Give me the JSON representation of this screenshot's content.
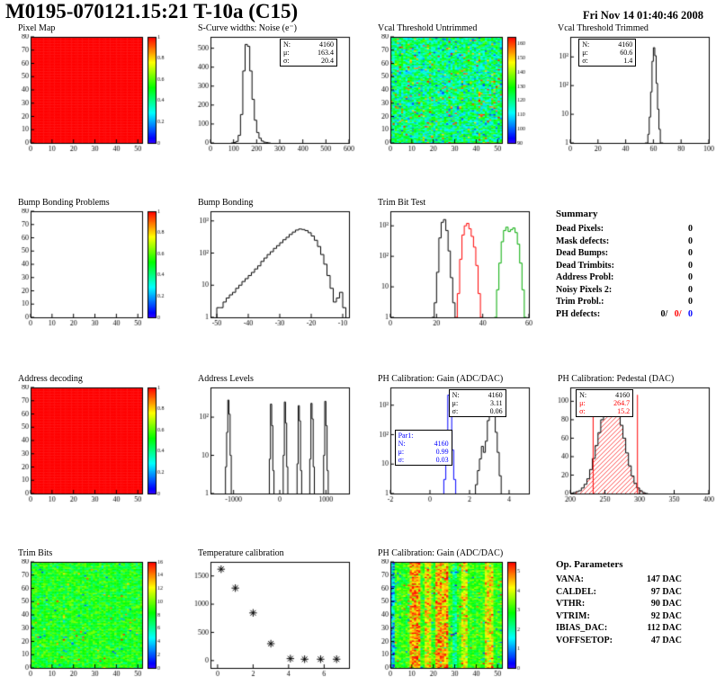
{
  "header": {
    "title": "M0195-070121.15:21 T-10a (C15)",
    "date": "Fri Nov 14 01:40:46 2008"
  },
  "summary": {
    "title": "Summary",
    "rows": [
      {
        "label": "Dead Pixels:",
        "value": "0"
      },
      {
        "label": "Mask defects:",
        "value": "0"
      },
      {
        "label": "Dead Bumps:",
        "value": "0"
      },
      {
        "label": "Dead Trimbits:",
        "value": "0"
      },
      {
        "label": "Address Probl:",
        "value": "0"
      },
      {
        "label": "Noisy Pixels 2:",
        "value": "0"
      },
      {
        "label": "Trim Probl.:",
        "value": "0"
      }
    ],
    "ph": {
      "label": "PH defects:",
      "v1": "0/",
      "v2": "0/",
      "v3": "0"
    }
  },
  "op_parameters": {
    "title": "Op. Parameters",
    "rows": [
      {
        "label": "VANA:",
        "value": "147 DAC"
      },
      {
        "label": "CALDEL:",
        "value": "97 DAC"
      },
      {
        "label": "VTHR:",
        "value": "90 DAC"
      },
      {
        "label": "VTRIM:",
        "value": "92 DAC"
      },
      {
        "label": "IBIAS_DAC:",
        "value": "112 DAC"
      },
      {
        "label": "VOFFSETOP:",
        "value": "47 DAC"
      }
    ]
  },
  "chart_data": [
    {
      "id": "pixel_map",
      "type": "heatmap",
      "title": "Pixel Map",
      "nx": 52,
      "ny": 80,
      "pattern": "uniform",
      "base": 1,
      "seed": 1,
      "x": {
        "min": 0,
        "max": 52,
        "ticks": [
          0,
          10,
          20,
          30,
          40,
          50
        ]
      },
      "y": {
        "min": 0,
        "max": 80,
        "ticks": [
          0,
          10,
          20,
          30,
          40,
          50,
          60,
          70,
          80
        ]
      },
      "z": {
        "min": 0,
        "max": 1
      },
      "colorbar": {
        "ticks": [
          0,
          0.2,
          0.4,
          0.6,
          0.8,
          1
        ]
      }
    },
    {
      "id": "scurve_noise",
      "type": "hist",
      "title": "S-Curve widths: Noise (e⁻)",
      "x": {
        "min": 0,
        "max": 600,
        "ticks": [
          0,
          100,
          200,
          300,
          400,
          500,
          600
        ]
      },
      "y": {
        "min": 0,
        "max": 560,
        "ticks": [
          0,
          100,
          200,
          300,
          400,
          500
        ]
      },
      "series": [
        {
          "color": "#000000",
          "start": 90,
          "width": 10,
          "counts": [
            0,
            2,
            8,
            40,
            150,
            380,
            520,
            510,
            380,
            230,
            120,
            55,
            25,
            10,
            4,
            2,
            0
          ]
        }
      ],
      "stats": [
        {
          "x": 0.5,
          "y": 0.02,
          "lines": [
            {
              "l": "N:",
              "v": "4160"
            },
            {
              "l": "μ:",
              "v": "163.4"
            },
            {
              "l": "σ:",
              "v": "20.4"
            }
          ]
        }
      ]
    },
    {
      "id": "vcal_untrimmed",
      "type": "heatmap",
      "title": "Vcal Threshold Untrimmed",
      "nx": 52,
      "ny": 80,
      "pattern": "noise",
      "base": 0.42,
      "spread": 0.38,
      "hot": 0.045,
      "cold": 0.06,
      "seed": 7,
      "x": {
        "min": 0,
        "max": 52,
        "ticks": [
          0,
          10,
          20,
          30,
          40,
          50
        ]
      },
      "y": {
        "min": 0,
        "max": 80,
        "ticks": [
          0,
          10,
          20,
          30,
          40,
          50,
          60,
          70,
          80
        ]
      },
      "z": {
        "min": 90,
        "max": 165
      },
      "colorbar": {
        "ticks": [
          90,
          100,
          110,
          120,
          130,
          140,
          150,
          160
        ]
      }
    },
    {
      "id": "vcal_trimmed",
      "type": "hist",
      "title": "Vcal Threshold Trimmed",
      "logy": true,
      "x": {
        "min": 0,
        "max": 100,
        "ticks": [
          0,
          20,
          40,
          60,
          80,
          100
        ]
      },
      "y": {
        "min": 1,
        "max": 5000,
        "ticks": [
          {
            "v": 1,
            "label": "1"
          },
          {
            "v": 10,
            "label": "10"
          },
          {
            "v": 100,
            "label": "10²"
          },
          {
            "v": 1000,
            "label": "10³"
          }
        ]
      },
      "series": [
        {
          "color": "#000000",
          "start": 54,
          "width": 1,
          "counts": [
            0,
            1,
            2,
            8,
            60,
            700,
            2100,
            1100,
            120,
            15,
            3,
            1,
            0
          ]
        }
      ],
      "stats": [
        {
          "x": 0.06,
          "y": 0.02,
          "lines": [
            {
              "l": "N:",
              "v": "4160"
            },
            {
              "l": "μ:",
              "v": "60.6"
            },
            {
              "l": "σ:",
              "v": "1.4"
            }
          ]
        }
      ]
    },
    {
      "id": "bb_problems",
      "type": "heatmap",
      "title": "Bump Bonding Problems",
      "nx": 52,
      "ny": 80,
      "pattern": "empty",
      "seed": 2,
      "x": {
        "min": 0,
        "max": 52,
        "ticks": [
          0,
          10,
          20,
          30,
          40,
          50
        ]
      },
      "y": {
        "min": 0,
        "max": 80,
        "ticks": [
          0,
          10,
          20,
          30,
          40,
          50,
          60,
          70,
          80
        ]
      },
      "z": {
        "min": 0,
        "max": 1
      },
      "colorbar": {
        "ticks": [
          0,
          0.2,
          0.4,
          0.6,
          0.8,
          1
        ]
      }
    },
    {
      "id": "bump_bonding",
      "type": "hist",
      "title": "Bump Bonding",
      "logy": true,
      "x": {
        "min": -52,
        "max": -8,
        "ticks": [
          -50,
          -40,
          -30,
          -20,
          -10
        ]
      },
      "y": {
        "min": 1,
        "max": 2000,
        "ticks": [
          {
            "v": 1,
            "label": "1"
          },
          {
            "v": 10,
            "label": "10"
          },
          {
            "v": 100,
            "label": "10²"
          },
          {
            "v": 1000,
            "label": "10³"
          }
        ]
      },
      "series": [
        {
          "color": "#000000",
          "start": -50,
          "width": 1,
          "counts": [
            2,
            2,
            3,
            4,
            5,
            6,
            8,
            10,
            13,
            16,
            20,
            25,
            32,
            40,
            55,
            70,
            90,
            110,
            140,
            170,
            210,
            260,
            310,
            380,
            450,
            520,
            560,
            540,
            500,
            430,
            340,
            250,
            160,
            90,
            45,
            20,
            8,
            3,
            4,
            6,
            2
          ]
        }
      ]
    },
    {
      "id": "trimbit_test",
      "type": "hist",
      "title": "Trim Bit Test",
      "logy": true,
      "x": {
        "min": 0,
        "max": 60,
        "ticks": [
          0,
          20,
          40,
          60
        ]
      },
      "y": {
        "min": 1,
        "max": 3000,
        "ticks": [
          {
            "v": 1,
            "label": "1"
          },
          {
            "v": 10,
            "label": "10"
          },
          {
            "v": 100,
            "label": "10²"
          },
          {
            "v": 1000,
            "label": "10³"
          }
        ]
      },
      "series": [
        {
          "color": "#000000",
          "start": 18,
          "width": 1,
          "counts": [
            1,
            3,
            30,
            400,
            1300,
            1600,
            700,
            150,
            20,
            3
          ]
        },
        {
          "color": "#ff0000",
          "start": 28,
          "width": 1,
          "counts": [
            1,
            6,
            80,
            500,
            1000,
            1200,
            800,
            450,
            200,
            50,
            6,
            1
          ]
        },
        {
          "color": "#00aa00",
          "start": 45,
          "width": 1,
          "counts": [
            1,
            8,
            60,
            300,
            700,
            900,
            650,
            750,
            850,
            600,
            250,
            60,
            8,
            1
          ]
        }
      ]
    },
    {
      "id": "address_decoding",
      "type": "heatmap",
      "title": "Address decoding",
      "nx": 52,
      "ny": 80,
      "pattern": "uniform",
      "base": 1,
      "seed": 3,
      "x": {
        "min": 0,
        "max": 52,
        "ticks": [
          0,
          10,
          20,
          30,
          40,
          50
        ]
      },
      "y": {
        "min": 0,
        "max": 80,
        "ticks": [
          0,
          10,
          20,
          30,
          40,
          50,
          60,
          70,
          80
        ]
      },
      "z": {
        "min": 0,
        "max": 1
      },
      "colorbar": {
        "ticks": [
          0,
          0.2,
          0.4,
          0.6,
          0.8,
          1
        ]
      }
    },
    {
      "id": "address_levels",
      "type": "hist",
      "title": "Address Levels",
      "logy": true,
      "x": {
        "min": -1500,
        "max": 1500,
        "ticks": [
          -1000,
          0,
          1000
        ]
      },
      "y": {
        "min": 1,
        "max": 600,
        "ticks": [
          {
            "v": 1,
            "label": "1"
          },
          {
            "v": 10,
            "label": "10"
          },
          {
            "v": 100,
            "label": "10²"
          }
        ]
      },
      "series": [
        {
          "color": "#000000",
          "start": -1175,
          "width": 25,
          "counts": [
            5,
            40,
            280,
            120,
            10
          ]
        },
        {
          "color": "#000000",
          "start": -225,
          "width": 25,
          "counts": [
            8,
            220,
            60,
            4
          ]
        },
        {
          "color": "#000000",
          "start": 75,
          "width": 25,
          "counts": [
            10,
            250,
            70,
            5
          ]
        },
        {
          "color": "#000000",
          "start": 375,
          "width": 25,
          "counts": [
            6,
            200,
            80,
            4
          ]
        },
        {
          "color": "#000000",
          "start": 650,
          "width": 25,
          "counts": [
            8,
            230,
            90,
            5
          ]
        },
        {
          "color": "#000000",
          "start": 950,
          "width": 25,
          "counts": [
            10,
            260,
            60,
            4
          ]
        }
      ]
    },
    {
      "id": "ph_gain",
      "type": "hist",
      "title": "PH Calibration: Gain (ADC/DAC)",
      "logy": true,
      "x": {
        "min": -2,
        "max": 5,
        "ticks": [
          -2,
          0,
          2,
          4
        ]
      },
      "y": {
        "min": 1,
        "max": 4000,
        "ticks": [
          {
            "v": 1,
            "label": "1"
          },
          {
            "v": 10,
            "label": "10"
          },
          {
            "v": 100,
            "label": "10²"
          },
          {
            "v": 1000,
            "label": "10³"
          }
        ]
      },
      "series": [
        {
          "color": "#0000ff",
          "start": 0.7,
          "width": 0.1,
          "counts": [
            3,
            40,
            2200,
            600,
            30,
            3
          ]
        },
        {
          "color": "#000000",
          "start": 2.3,
          "width": 0.1,
          "counts": [
            2,
            6,
            15,
            40,
            25,
            60,
            300,
            1100,
            1400,
            500,
            120,
            25,
            4
          ]
        }
      ],
      "stats": [
        {
          "x": 0.42,
          "y": 0.02,
          "lines": [
            {
              "l": "N:",
              "v": "4160"
            },
            {
              "l": "μ:",
              "v": "3.11"
            },
            {
              "l": "σ:",
              "v": "0.06"
            }
          ]
        },
        {
          "x": 0.03,
          "y": 0.4,
          "lines": [
            {
              "l": "Par1:",
              "v": "",
              "c": "#0000ff"
            },
            {
              "l": "N:",
              "v": "4160",
              "c": "#0000ff"
            },
            {
              "l": "μ:",
              "v": "0.99",
              "c": "#0000ff"
            },
            {
              "l": "σ:",
              "v": "0.03",
              "c": "#0000ff"
            }
          ]
        }
      ]
    },
    {
      "id": "ph_pedestal",
      "type": "hist",
      "title": "PH Calibration: Pedestal (DAC)",
      "x": {
        "min": 200,
        "max": 400,
        "ticks": [
          200,
          250,
          300,
          350,
          400
        ]
      },
      "y": {
        "min": 0,
        "max": 115,
        "ticks": [
          0,
          20,
          40,
          60,
          80,
          100
        ]
      },
      "series": [
        {
          "color": "#000000",
          "fill": "hatch-red",
          "start": 200,
          "width": 4,
          "counts": [
            0,
            1,
            2,
            3,
            6,
            10,
            16,
            26,
            38,
            52,
            66,
            80,
            94,
            97,
            105,
            100,
            92,
            85,
            74,
            60,
            44,
            30,
            19,
            11,
            6,
            3,
            1,
            0
          ]
        }
      ],
      "vlines": [
        {
          "x": 233,
          "y2": 107,
          "color": "#ff0000"
        },
        {
          "x": 297,
          "y2": 107,
          "color": "#ff0000"
        }
      ],
      "stats": [
        {
          "x": 0.04,
          "y": 0.02,
          "lines": [
            {
              "l": "N:",
              "v": "4160"
            },
            {
              "l": "μ:",
              "v": "264.7",
              "c": "#ff0000"
            },
            {
              "l": "σ:",
              "v": "15.2",
              "c": "#ff0000"
            }
          ]
        }
      ]
    },
    {
      "id": "trim_bits",
      "type": "heatmap",
      "title": "Trim Bits",
      "nx": 52,
      "ny": 80,
      "pattern": "noise",
      "base": 0.52,
      "spread": 0.26,
      "hot": 0.01,
      "cold": 0.012,
      "seed": 21,
      "x": {
        "min": 0,
        "max": 52,
        "ticks": [
          0,
          10,
          20,
          30,
          40,
          50
        ]
      },
      "y": {
        "min": 0,
        "max": 80,
        "ticks": [
          0,
          10,
          20,
          30,
          40,
          50,
          60,
          70,
          80
        ]
      },
      "z": {
        "min": 0,
        "max": 16
      },
      "colorbar": {
        "ticks": [
          0,
          2,
          4,
          6,
          8,
          10,
          12,
          14,
          16
        ]
      }
    },
    {
      "id": "temp_cal",
      "type": "scatter",
      "title": "Temperature calibration",
      "x": {
        "min": -0.4,
        "max": 7.4,
        "ticks": [
          0,
          2,
          4,
          6
        ]
      },
      "y": {
        "min": -130,
        "max": 1750,
        "ticks": [
          0,
          500,
          1000,
          1500
        ]
      },
      "points": [
        [
          0.2,
          1620
        ],
        [
          1,
          1285
        ],
        [
          2,
          845
        ],
        [
          3,
          300
        ],
        [
          4.1,
          35
        ],
        [
          4.9,
          25
        ],
        [
          5.8,
          25
        ],
        [
          6.7,
          25
        ]
      ]
    },
    {
      "id": "ph_gain_map",
      "type": "heatmap",
      "title": "PH Calibration: Gain (ADC/DAC)",
      "nx": 52,
      "ny": 80,
      "pattern": "noise",
      "base": 0.55,
      "spread": 0.26,
      "hot": 0.02,
      "cold": 0.02,
      "seed": 42,
      "stripes": [
        [
          9,
          13,
          0.3
        ],
        [
          16,
          18,
          0.22
        ],
        [
          21,
          26,
          0.28
        ],
        [
          33,
          35,
          0.18
        ],
        [
          44,
          47,
          0.2
        ],
        [
          0,
          1,
          -0.3
        ],
        [
          29,
          30,
          -0.15
        ]
      ],
      "x": {
        "min": 0,
        "max": 52,
        "ticks": [
          0,
          10,
          20,
          30,
          40,
          50
        ]
      },
      "y": {
        "min": 0,
        "max": 80,
        "ticks": [
          0,
          10,
          20,
          30,
          40,
          50,
          60,
          70,
          80
        ]
      },
      "z": {
        "min": 0,
        "max": 5.5
      },
      "colorbar": {
        "ticks": [
          0,
          1,
          2,
          3,
          4,
          5
        ]
      }
    }
  ]
}
